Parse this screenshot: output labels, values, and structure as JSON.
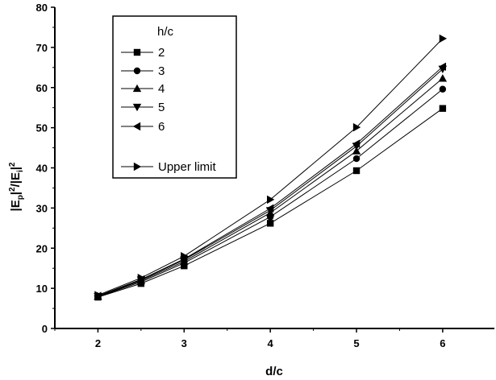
{
  "chart_data": {
    "type": "line",
    "x": [
      2,
      2.5,
      3,
      4,
      5,
      6
    ],
    "xlabel": "d/c",
    "ylabel_main": "|E",
    "ylabel_sub": "p",
    "ylabel_mid": "|",
    "ylabel_sup": "2",
    "ylabel_rest": "/|E",
    "ylabel_sub2": "i",
    "ylabel_mid2": "|",
    "ylabel_sup2": "2",
    "xlim": [
      1.5,
      6.6
    ],
    "ylim": [
      0,
      80
    ],
    "xticks": [
      2,
      3,
      4,
      5,
      6
    ],
    "yticks": [
      0,
      10,
      20,
      30,
      40,
      50,
      60,
      70,
      80
    ],
    "grid": false,
    "legend_title": "h/c",
    "legend_position": "top-left",
    "series": [
      {
        "name": "2",
        "marker": "square",
        "values": [
          7.8,
          11.2,
          15.6,
          26.2,
          39.3,
          54.8
        ]
      },
      {
        "name": "3",
        "marker": "circle",
        "values": [
          7.9,
          11.6,
          16.3,
          27.8,
          42.3,
          59.6
        ]
      },
      {
        "name": "4",
        "marker": "triangle-up",
        "values": [
          8.0,
          11.9,
          16.7,
          28.8,
          44.2,
          62.3
        ]
      },
      {
        "name": "5",
        "marker": "triangle-down",
        "values": [
          8.0,
          12.1,
          17.1,
          29.4,
          45.4,
          64.6
        ]
      },
      {
        "name": "6",
        "marker": "triangle-left",
        "values": [
          8.1,
          12.2,
          17.3,
          29.9,
          46.0,
          65.2
        ]
      },
      {
        "name": "Upper limit",
        "marker": "triangle-right",
        "values": [
          8.3,
          12.6,
          18.0,
          32.1,
          50.1,
          72.2
        ]
      }
    ]
  }
}
